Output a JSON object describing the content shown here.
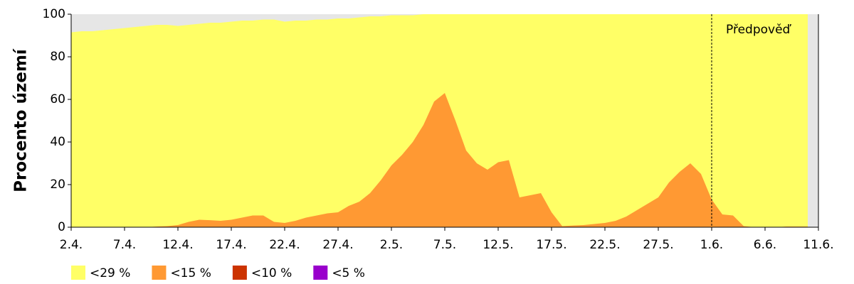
{
  "chart_data": {
    "type": "area",
    "y_label": "Procento území",
    "annotation": "Předpověď",
    "forecast_start": "1.6.",
    "categories": [
      "2.4.",
      null,
      null,
      null,
      null,
      "7.4.",
      null,
      null,
      null,
      null,
      "12.4.",
      null,
      null,
      null,
      null,
      "17.4.",
      null,
      null,
      null,
      null,
      "22.4.",
      null,
      null,
      null,
      null,
      "27.4.",
      null,
      null,
      null,
      null,
      "2.5.",
      null,
      null,
      null,
      null,
      "7.5.",
      null,
      null,
      null,
      null,
      "12.5.",
      null,
      null,
      null,
      null,
      "17.5.",
      null,
      null,
      null,
      null,
      "22.5.",
      null,
      null,
      null,
      null,
      "27.5.",
      null,
      null,
      null,
      null,
      "1.6.",
      null,
      null,
      null,
      null,
      "6.6.",
      null,
      null,
      null,
      null,
      "11.6."
    ],
    "series": [
      {
        "name": "<29 %",
        "color": "#ffff66",
        "values": [
          91.5,
          92,
          92,
          92.5,
          93,
          93.5,
          94,
          94.5,
          95,
          95,
          94.5,
          95,
          95.5,
          96,
          96,
          96.5,
          97,
          97,
          97.5,
          97.5,
          96.5,
          97,
          97,
          97.5,
          97.5,
          98,
          98,
          98.5,
          99,
          99,
          99.5,
          99.5,
          99.5,
          100,
          100,
          100,
          100,
          100,
          100,
          100,
          100,
          100,
          100,
          100,
          100,
          100,
          100,
          100,
          100,
          100,
          100,
          100,
          100,
          100,
          100,
          100,
          100,
          100,
          100,
          100,
          100,
          100,
          100,
          100,
          100,
          100,
          100,
          100,
          100,
          100,
          null
        ]
      },
      {
        "name": "<15 %",
        "color": "#ff9933",
        "values": [
          0,
          0,
          0,
          0,
          0,
          0,
          0,
          0,
          0.3,
          0.5,
          1,
          2.5,
          3.5,
          3.3,
          3,
          3.5,
          4.5,
          5.5,
          5.5,
          2.5,
          2,
          3,
          4.5,
          5.5,
          6.5,
          7,
          10,
          12,
          16,
          22,
          29,
          34,
          40,
          48,
          59,
          63,
          50,
          36,
          30,
          27,
          30.5,
          31.5,
          14,
          15,
          16,
          7,
          0.5,
          0.8,
          1,
          1.5,
          2,
          3,
          5,
          8,
          11,
          14,
          21,
          26,
          30,
          25,
          13,
          6,
          5.5,
          0.5,
          0,
          0,
          0,
          0.3,
          0.3,
          0.3,
          null
        ]
      },
      {
        "name": "<10 %",
        "color": "#cc3300",
        "values": [
          0,
          0,
          0,
          0,
          0,
          0,
          0,
          0,
          0,
          0,
          0,
          0,
          0,
          0,
          0,
          0,
          0,
          0,
          0,
          0,
          0,
          0,
          0,
          0,
          0,
          0,
          0,
          0,
          0,
          0,
          0,
          0,
          0,
          0,
          0,
          0,
          0,
          0,
          0,
          0,
          0,
          0,
          0,
          0,
          0,
          0,
          0,
          0,
          0,
          0,
          0,
          0,
          0,
          0,
          0,
          0,
          0,
          0,
          0,
          0,
          0,
          0,
          0,
          0,
          0,
          0,
          0,
          0,
          0,
          0,
          null
        ]
      },
      {
        "name": "<5 %",
        "color": "#9900cc",
        "values": [
          0,
          0,
          0,
          0,
          0,
          0,
          0,
          0,
          0,
          0,
          0,
          0,
          0,
          0,
          0,
          0,
          0,
          0,
          0,
          0,
          0,
          0,
          0,
          0,
          0,
          0,
          0,
          0,
          0,
          0,
          0,
          0,
          0,
          0,
          0,
          0,
          0,
          0,
          0,
          0,
          0,
          0,
          0,
          0,
          0,
          0,
          0,
          0,
          0,
          0,
          0,
          0,
          0,
          0,
          0,
          0,
          0,
          0,
          0,
          0,
          0,
          0,
          0,
          0,
          0,
          0,
          0,
          0,
          0,
          0,
          null
        ]
      }
    ],
    "ylim": [
      0,
      100
    ],
    "yticks": [
      0,
      20,
      40,
      60,
      80,
      100
    ],
    "legend": "bottom-left"
  }
}
